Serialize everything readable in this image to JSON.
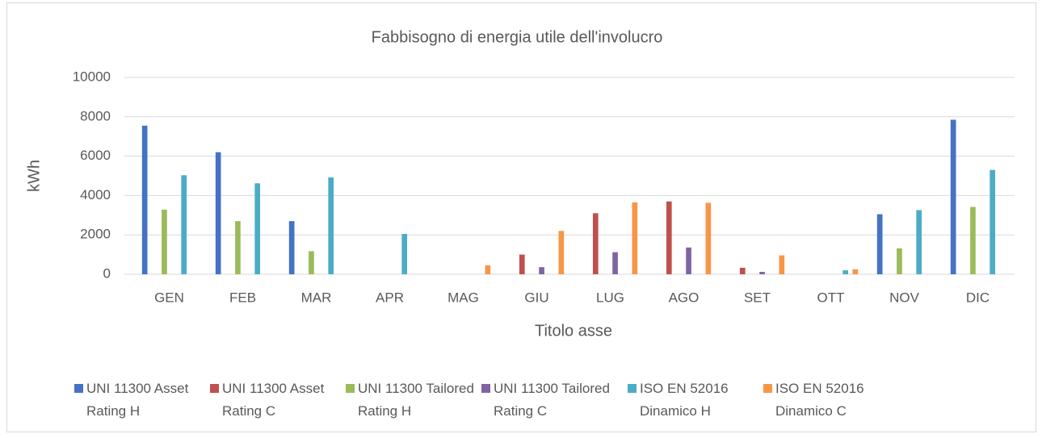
{
  "chart_data": {
    "type": "bar",
    "title": "Fabbisogno di energia utile dell'involucro",
    "x_label": "Titolo asse",
    "y_label": "kWh",
    "categories": [
      "GEN",
      "FEB",
      "MAR",
      "APR",
      "MAG",
      "GIU",
      "LUG",
      "AGO",
      "SET",
      "OTT",
      "NOV",
      "DIC"
    ],
    "series": [
      {
        "name": "UNI 11300 Asset Rating H",
        "color": "#4472c4",
        "values": [
          7550,
          6200,
          2700,
          0,
          0,
          0,
          0,
          0,
          0,
          0,
          3050,
          7850
        ]
      },
      {
        "name": "UNI 11300 Asset Rating C",
        "color": "#c0504d",
        "values": [
          0,
          0,
          0,
          0,
          0,
          1000,
          3100,
          3700,
          330,
          0,
          0,
          0
        ]
      },
      {
        "name": "UNI 11300 Tailored Rating H",
        "color": "#9bbb59",
        "values": [
          3280,
          2700,
          1170,
          0,
          0,
          0,
          0,
          0,
          0,
          0,
          1320,
          3420
        ]
      },
      {
        "name": "UNI 11300 Tailored Rating C",
        "color": "#8064a2",
        "values": [
          0,
          0,
          0,
          0,
          0,
          360,
          1120,
          1360,
          120,
          0,
          0,
          0
        ]
      },
      {
        "name": "ISO EN 52016 Dinamico H",
        "color": "#4bacc6",
        "values": [
          5030,
          4620,
          4920,
          2050,
          0,
          0,
          0,
          0,
          0,
          200,
          3260,
          5300
        ]
      },
      {
        "name": "ISO EN 52016 Dinamico C",
        "color": "#f79646",
        "values": [
          0,
          0,
          0,
          0,
          450,
          2200,
          3650,
          3630,
          960,
          250,
          0,
          0
        ]
      }
    ],
    "ylim": [
      0,
      10000
    ],
    "yticks": [
      0,
      2000,
      4000,
      6000,
      8000,
      10000
    ],
    "grid": true,
    "legend": "bottom"
  }
}
